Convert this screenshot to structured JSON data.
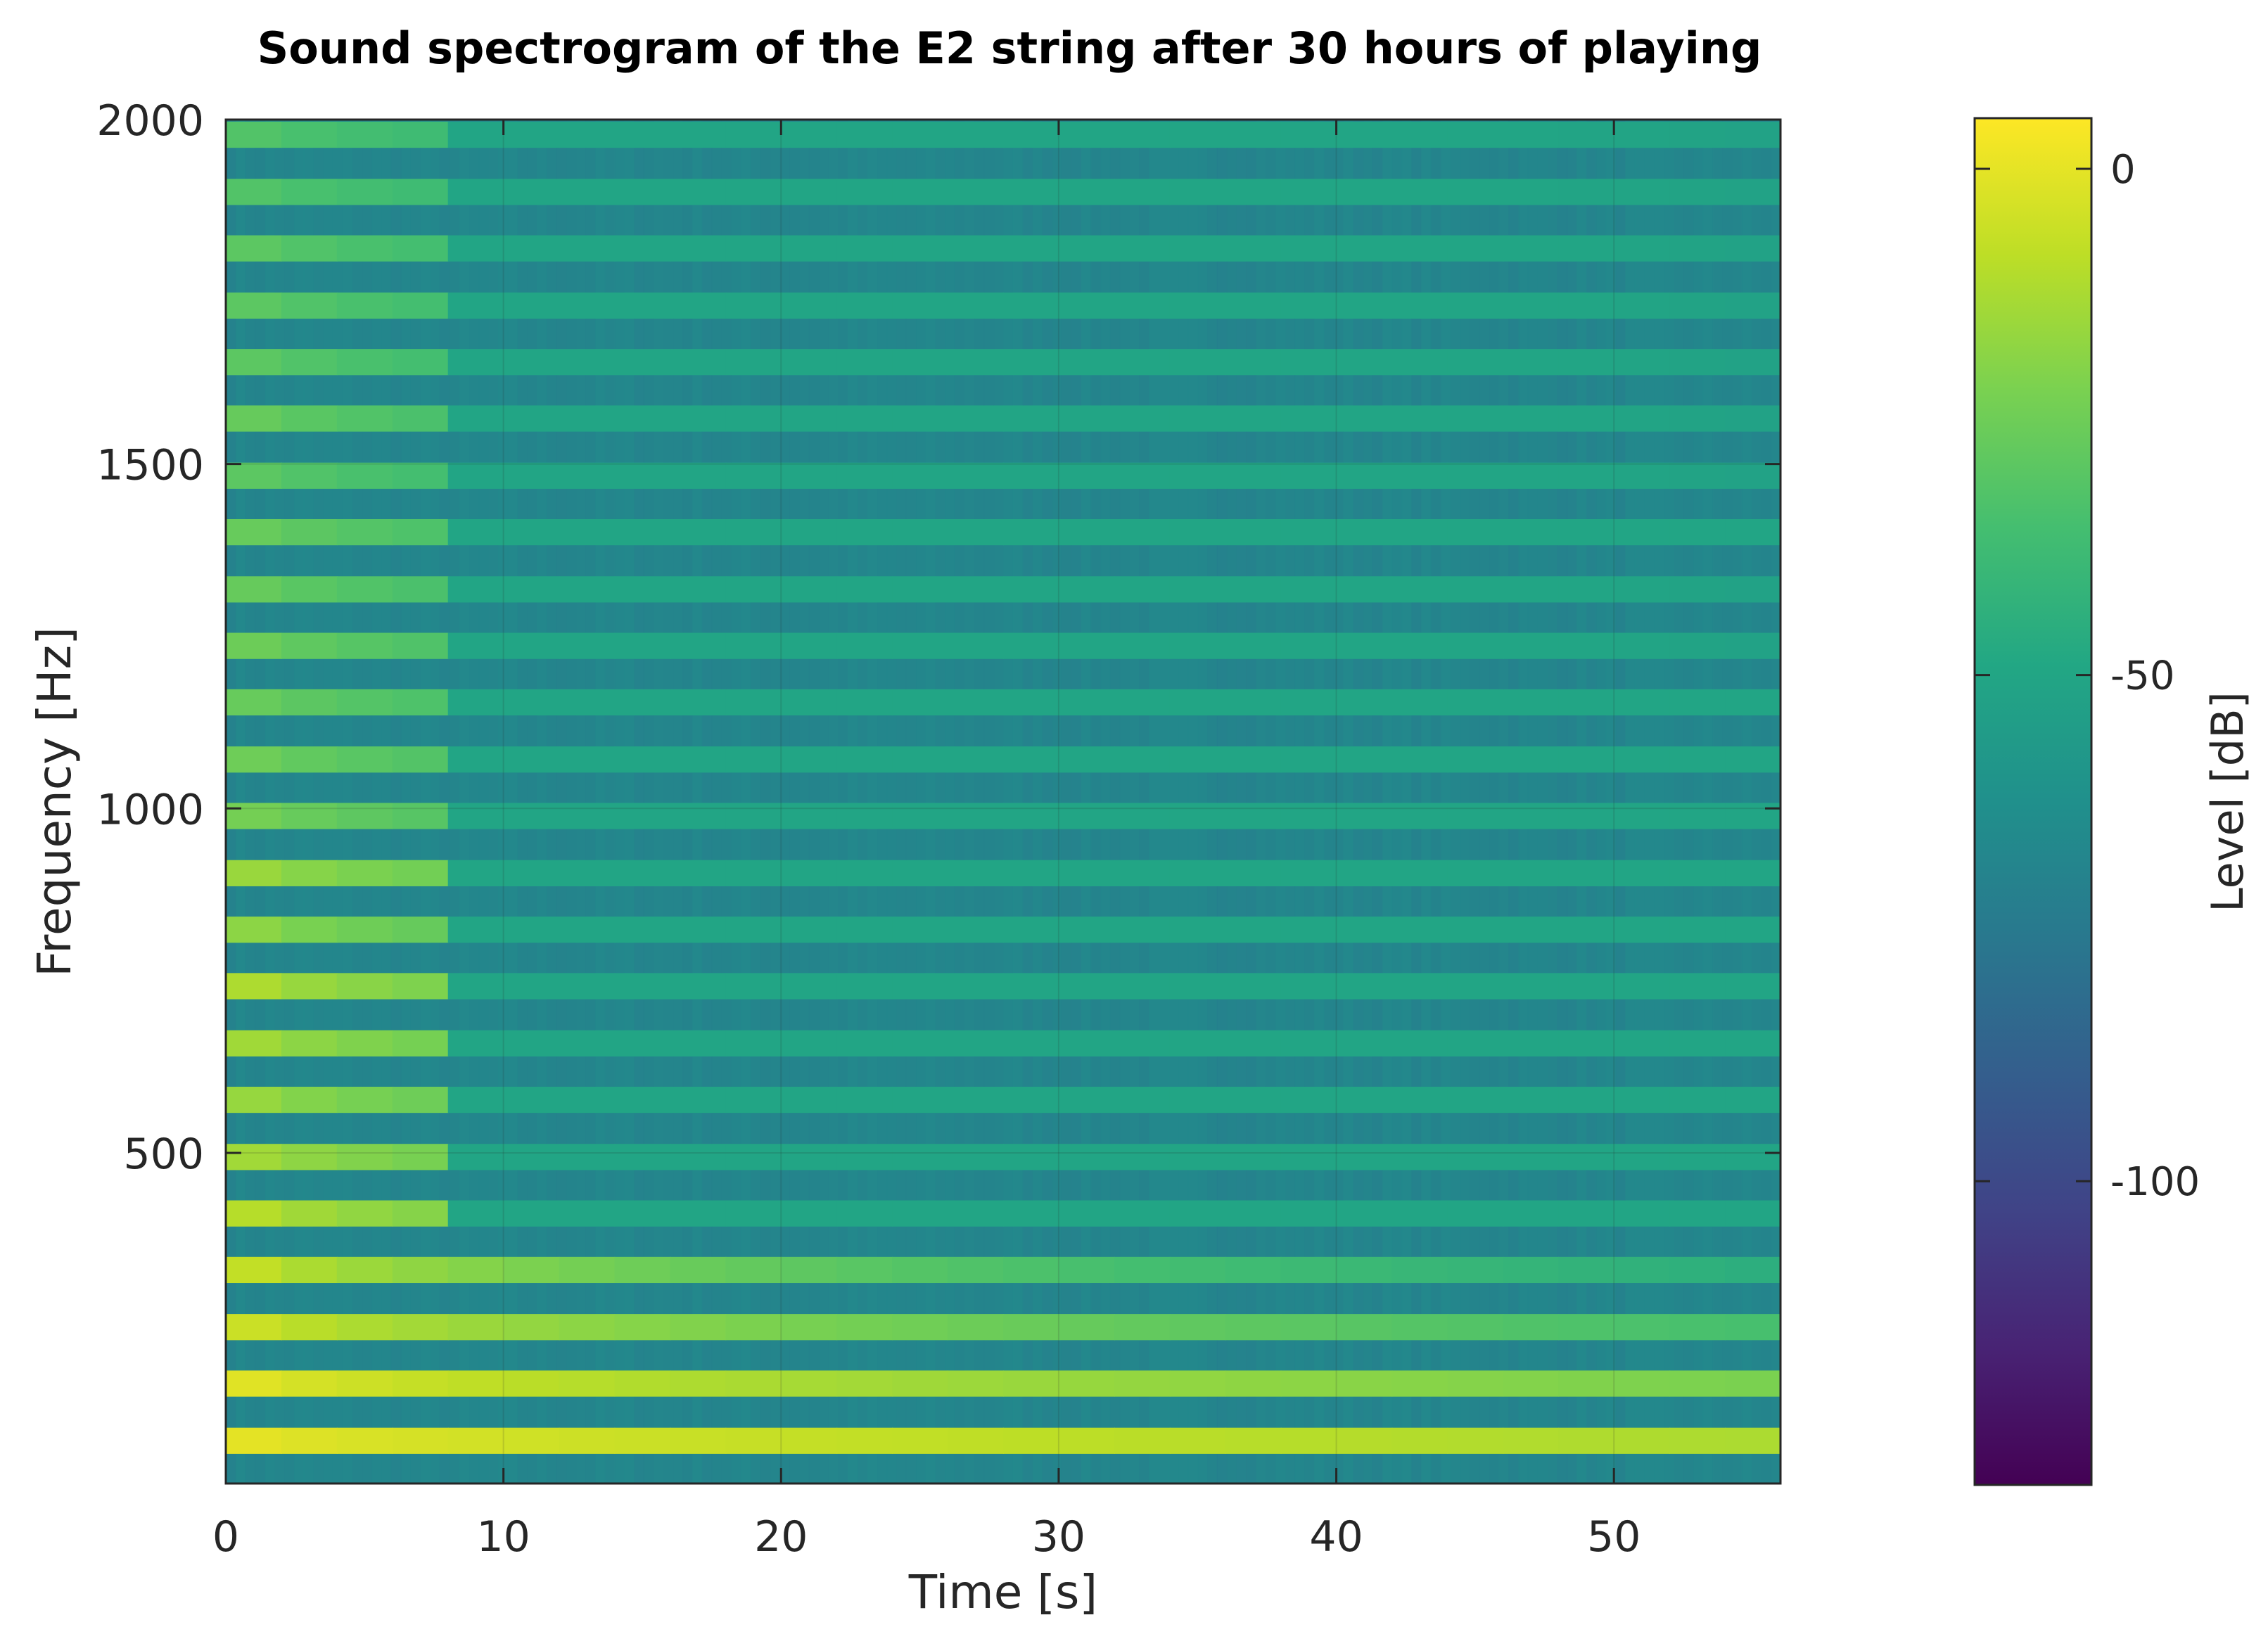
{
  "chart_data": {
    "type": "heatmap",
    "title": "Sound spectrogram of the E2 string after 30 hours of playing",
    "xlabel": "Time [s]",
    "ylabel": "Frequency [Hz]",
    "xlim": [
      0,
      56
    ],
    "ylim": [
      20,
      2000
    ],
    "x_ticks": [
      0,
      10,
      20,
      30,
      40,
      50
    ],
    "x_tick_labels": [
      "0",
      "10",
      "20",
      "30",
      "40",
      "50"
    ],
    "y_ticks": [
      500,
      1000,
      1500,
      2000
    ],
    "y_tick_labels": [
      "500",
      "1000",
      "1500",
      "2000"
    ],
    "grid": true,
    "colormap": "viridis",
    "colorbar": {
      "label": "Level [dB]",
      "limits": [
        -130,
        5
      ],
      "ticks": [
        0,
        -50,
        -100
      ],
      "tick_labels": [
        "0",
        "-50",
        "-100"
      ],
      "placement": "right"
    },
    "fundamental_hz": 82.4,
    "harmonics": [
      {
        "frequency_hz": 82,
        "start_db": 2,
        "end_db": -12
      },
      {
        "frequency_hz": 165,
        "start_db": 3,
        "end_db": -22
      },
      {
        "frequency_hz": 247,
        "start_db": 0,
        "end_db": -35
      },
      {
        "frequency_hz": 330,
        "start_db": 0,
        "end_db": -45
      },
      {
        "frequency_hz": 412,
        "start_db": -3,
        "end_db": -45
      },
      {
        "frequency_hz": 494,
        "start_db": -8,
        "end_db": -45
      },
      {
        "frequency_hz": 577,
        "start_db": -10,
        "end_db": -48
      },
      {
        "frequency_hz": 659,
        "start_db": -8,
        "end_db": -46
      },
      {
        "frequency_hz": 742,
        "start_db": -5,
        "end_db": -46
      },
      {
        "frequency_hz": 824,
        "start_db": -12,
        "end_db": -50
      },
      {
        "frequency_hz": 906,
        "start_db": -10,
        "end_db": -45
      },
      {
        "frequency_hz": 989,
        "start_db": -18,
        "end_db": -50
      },
      {
        "frequency_hz": 1071,
        "start_db": -20,
        "end_db": -50
      },
      {
        "frequency_hz": 1154,
        "start_db": -22,
        "end_db": -50
      },
      {
        "frequency_hz": 1236,
        "start_db": -20,
        "end_db": -52
      },
      {
        "frequency_hz": 1318,
        "start_db": -22,
        "end_db": -52
      },
      {
        "frequency_hz": 1401,
        "start_db": -22,
        "end_db": -50
      },
      {
        "frequency_hz": 1483,
        "start_db": -25,
        "end_db": -52
      },
      {
        "frequency_hz": 1566,
        "start_db": -22,
        "end_db": -52
      },
      {
        "frequency_hz": 1648,
        "start_db": -25,
        "end_db": -52
      },
      {
        "frequency_hz": 1730,
        "start_db": -25,
        "end_db": -52
      },
      {
        "frequency_hz": 1813,
        "start_db": -25,
        "end_db": -52
      },
      {
        "frequency_hz": 1895,
        "start_db": -28,
        "end_db": -52
      },
      {
        "frequency_hz": 1978,
        "start_db": -28,
        "end_db": -52
      }
    ],
    "noise_floor_db": -68
  }
}
